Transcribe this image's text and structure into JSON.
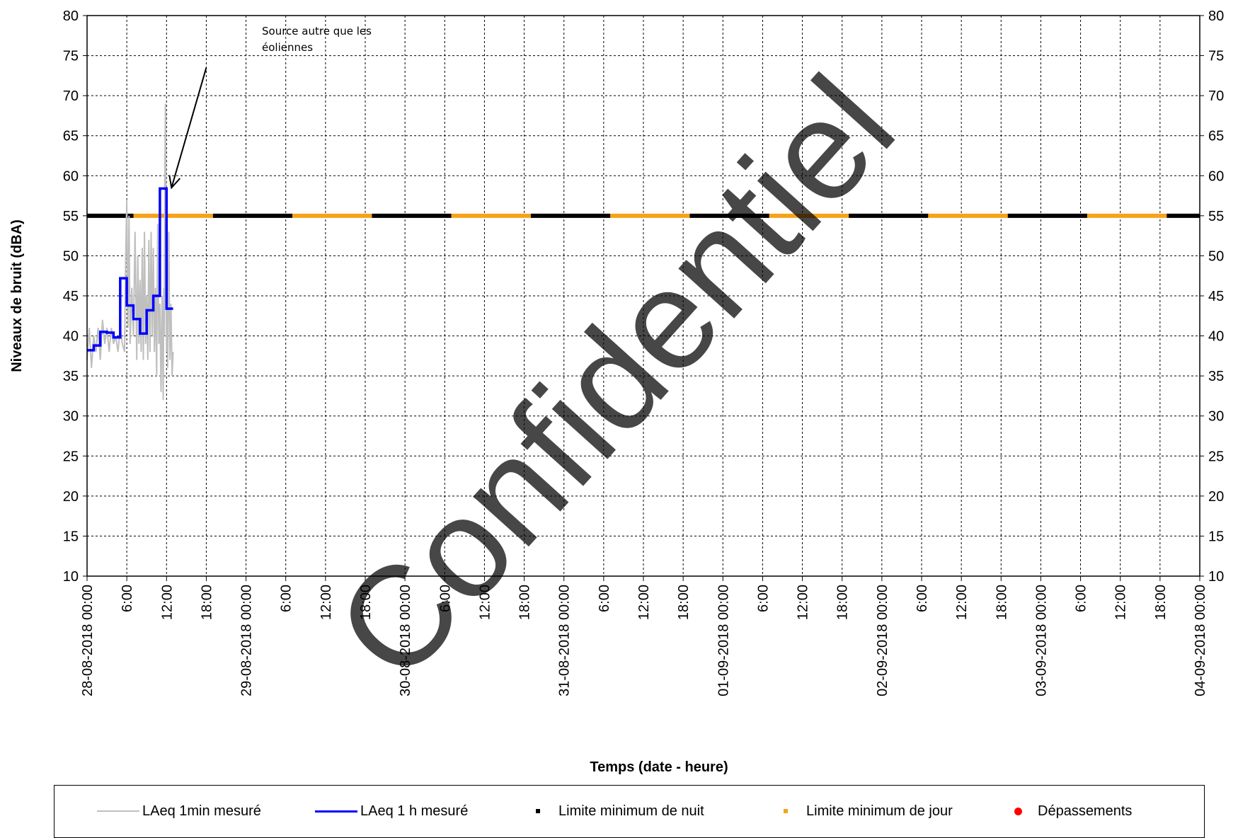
{
  "chart_data": {
    "type": "line",
    "xlabel": "Temps (date - heure)",
    "ylabel": "Niveaux de bruit (dBA)",
    "ylim": [
      10,
      80
    ],
    "y_ticks": [
      10,
      15,
      20,
      25,
      30,
      35,
      40,
      45,
      50,
      55,
      60,
      65,
      70,
      75,
      80
    ],
    "x_range": [
      "28-08-2018 00:00",
      "04-09-2018 00:00"
    ],
    "x_ticks": [
      "28-08-2018  00:00",
      "6:00",
      "12:00",
      "18:00",
      "29-08-2018  00:00",
      "6:00",
      "12:00",
      "18:00",
      "30-08-2018  00:00",
      "6:00",
      "12:00",
      "18:00",
      "31-08-2018  00:00",
      "6:00",
      "12:00",
      "18:00",
      "01-09-2018  00:00",
      "6:00",
      "12:00",
      "18:00",
      "02-09-2018  00:00",
      "6:00",
      "12:00",
      "18:00",
      "03-09-2018  00:00",
      "6:00",
      "12:00",
      "18:00",
      "04-09-2018  00:00"
    ],
    "grid": true,
    "legend_position": "bottom",
    "annotation": {
      "text": [
        "Source autre que les",
        "éoliennes"
      ],
      "arrow_from": [
        "28-08-2018 18:00",
        73.5
      ],
      "arrow_to": [
        "28-08-2018 12:45",
        58.5
      ]
    },
    "watermark": "Confidentiel",
    "series": [
      {
        "name": "LAeq 1min mesuré",
        "color": "#bfbfbf",
        "x": [
          "28-08-2018 00:00",
          "28-08-2018 00:20",
          "28-08-2018 00:40",
          "28-08-2018 01:00",
          "28-08-2018 01:20",
          "28-08-2018 01:40",
          "28-08-2018 02:00",
          "28-08-2018 02:20",
          "28-08-2018 02:40",
          "28-08-2018 03:00",
          "28-08-2018 03:20",
          "28-08-2018 03:40",
          "28-08-2018 04:00",
          "28-08-2018 04:20",
          "28-08-2018 04:40",
          "28-08-2018 05:00",
          "28-08-2018 05:20",
          "28-08-2018 05:40",
          "28-08-2018 05:50",
          "28-08-2018 06:00",
          "28-08-2018 06:10",
          "28-08-2018 06:20",
          "28-08-2018 06:30",
          "28-08-2018 06:45",
          "28-08-2018 07:00",
          "28-08-2018 07:15",
          "28-08-2018 07:30",
          "28-08-2018 07:40",
          "28-08-2018 07:50",
          "28-08-2018 08:00",
          "28-08-2018 08:10",
          "28-08-2018 08:20",
          "28-08-2018 08:30",
          "28-08-2018 08:40",
          "28-08-2018 08:50",
          "28-08-2018 09:00",
          "28-08-2018 09:10",
          "28-08-2018 09:20",
          "28-08-2018 09:30",
          "28-08-2018 09:40",
          "28-08-2018 09:50",
          "28-08-2018 10:00",
          "28-08-2018 10:10",
          "28-08-2018 10:20",
          "28-08-2018 10:30",
          "28-08-2018 10:40",
          "28-08-2018 10:50",
          "28-08-2018 11:00",
          "28-08-2018 11:10",
          "28-08-2018 11:20",
          "28-08-2018 11:30",
          "28-08-2018 11:35",
          "28-08-2018 11:40",
          "28-08-2018 11:45",
          "28-08-2018 11:50",
          "28-08-2018 12:00",
          "28-08-2018 12:05",
          "28-08-2018 12:10",
          "28-08-2018 12:20",
          "28-08-2018 12:30",
          "28-08-2018 12:40",
          "28-08-2018 12:50",
          "28-08-2018 13:00"
        ],
        "values": [
          37,
          41,
          36,
          40,
          38,
          41,
          37,
          42,
          39,
          41,
          38,
          41,
          39,
          40,
          38,
          41,
          39,
          38,
          50,
          57,
          41,
          55,
          39,
          46,
          40,
          53,
          37,
          50,
          39,
          47,
          38,
          51,
          37,
          53,
          39,
          45,
          37,
          52,
          38,
          53,
          40,
          51,
          38,
          46,
          35,
          54,
          39,
          44,
          33,
          45,
          32,
          46,
          40,
          60,
          69,
          38,
          45,
          36,
          53,
          37,
          44,
          35,
          38
        ]
      },
      {
        "name": "LAeq 1 h mesuré",
        "color": "#0000ff",
        "x": [
          "28-08-2018 00:00",
          "28-08-2018 01:00",
          "28-08-2018 02:00",
          "28-08-2018 03:00",
          "28-08-2018 04:00",
          "28-08-2018 05:00",
          "28-08-2018 06:00",
          "28-08-2018 07:00",
          "28-08-2018 08:00",
          "28-08-2018 09:00",
          "28-08-2018 10:00",
          "28-08-2018 11:00",
          "28-08-2018 12:00",
          "28-08-2018 13:00"
        ],
        "values": [
          38.2,
          38.8,
          40.5,
          40.4,
          39.8,
          47.2,
          43.8,
          42.1,
          40.3,
          43.2,
          45.0,
          58.4,
          43.4,
          43.4
        ]
      },
      {
        "name": "Limite minimum de nuit",
        "color": "#000000",
        "value": 55,
        "periods": [
          [
            "28-08-2018 00:00",
            "28-08-2018 07:00"
          ],
          [
            "28-08-2018 19:00",
            "29-08-2018 07:00"
          ],
          [
            "29-08-2018 19:00",
            "30-08-2018 07:00"
          ],
          [
            "30-08-2018 19:00",
            "31-08-2018 07:00"
          ],
          [
            "31-08-2018 19:00",
            "01-09-2018 07:00"
          ],
          [
            "01-09-2018 19:00",
            "02-09-2018 07:00"
          ],
          [
            "02-09-2018 19:00",
            "03-09-2018 07:00"
          ],
          [
            "03-09-2018 19:00",
            "04-09-2018 00:00"
          ]
        ]
      },
      {
        "name": "Limite minimum de jour",
        "color": "#f5a31a",
        "value": 55,
        "periods": [
          [
            "28-08-2018 07:00",
            "28-08-2018 19:00"
          ],
          [
            "29-08-2018 07:00",
            "29-08-2018 19:00"
          ],
          [
            "30-08-2018 07:00",
            "30-08-2018 19:00"
          ],
          [
            "31-08-2018 07:00",
            "31-08-2018 19:00"
          ],
          [
            "01-09-2018 07:00",
            "01-09-2018 19:00"
          ],
          [
            "02-09-2018 07:00",
            "02-09-2018 19:00"
          ],
          [
            "03-09-2018 07:00",
            "03-09-2018 19:00"
          ]
        ]
      },
      {
        "name": "Dépassements",
        "color": "#ff0000",
        "x": [],
        "values": []
      }
    ]
  }
}
